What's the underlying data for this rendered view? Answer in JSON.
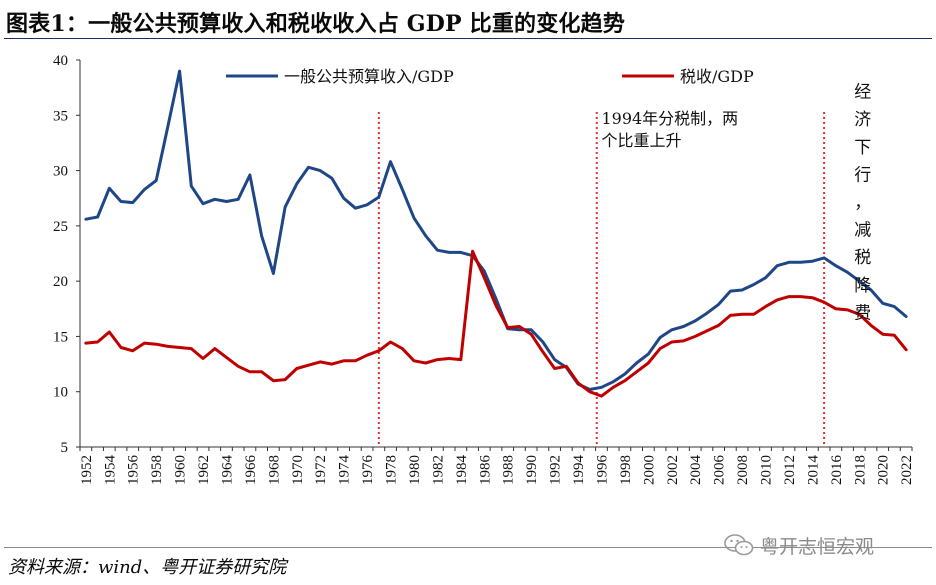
{
  "header": {
    "title": "图表1：一般公共预算收入和税收收入占 GDP 比重的变化趋势"
  },
  "footer": {
    "source": "资料来源：wind、粤开证券研究院",
    "watermark": "粤开志恒宏观"
  },
  "colors": {
    "series_revenue": "#1f4788",
    "series_tax": "#c00000",
    "marker_line": "#e03030",
    "axis": "#333333"
  },
  "chart_data": {
    "type": "line",
    "title": "一般公共预算收入和税收收入占 GDP 比重的变化趋势",
    "xlabel": "",
    "ylabel": "",
    "xlim": [
      1952,
      2023
    ],
    "ylim": [
      5,
      40
    ],
    "yticks": [
      5,
      10,
      15,
      20,
      25,
      30,
      35,
      40
    ],
    "xtick_labels": [
      "1952",
      "1954",
      "1956",
      "1958",
      "1960",
      "1962",
      "1964",
      "1966",
      "1968",
      "1970",
      "1972",
      "1974",
      "1976",
      "1978",
      "1980",
      "1982",
      "1984",
      "1986",
      "1988",
      "1990",
      "1992",
      "1994",
      "1996",
      "1998",
      "2000",
      "2002",
      "2004",
      "2006",
      "2008",
      "2010",
      "2012",
      "2014",
      "2016",
      "2018",
      "2020",
      "2022"
    ],
    "legend_position": "top",
    "series": [
      {
        "name": "一般公共预算收入/GDP",
        "color_key": "series_revenue",
        "points": [
          [
            1952,
            25.6
          ],
          [
            1953,
            25.8
          ],
          [
            1954,
            28.4
          ],
          [
            1955,
            27.2
          ],
          [
            1956,
            27.1
          ],
          [
            1957,
            28.3
          ],
          [
            1958,
            29.1
          ],
          [
            1959,
            34.0
          ],
          [
            1960,
            39.0
          ],
          [
            1961,
            28.6
          ],
          [
            1962,
            27.0
          ],
          [
            1963,
            27.4
          ],
          [
            1964,
            27.2
          ],
          [
            1965,
            27.4
          ],
          [
            1966,
            29.6
          ],
          [
            1967,
            24.1
          ],
          [
            1968,
            20.7
          ],
          [
            1969,
            26.7
          ],
          [
            1970,
            28.8
          ],
          [
            1971,
            30.3
          ],
          [
            1972,
            30.0
          ],
          [
            1973,
            29.3
          ],
          [
            1974,
            27.5
          ],
          [
            1975,
            26.6
          ],
          [
            1976,
            26.9
          ],
          [
            1977,
            27.6
          ],
          [
            1978,
            30.8
          ],
          [
            1979,
            28.3
          ],
          [
            1980,
            25.7
          ],
          [
            1981,
            24.1
          ],
          [
            1982,
            22.8
          ],
          [
            1983,
            22.6
          ],
          [
            1984,
            22.6
          ],
          [
            1985,
            22.3
          ],
          [
            1986,
            20.9
          ],
          [
            1987,
            18.4
          ],
          [
            1988,
            15.7
          ],
          [
            1989,
            15.6
          ],
          [
            1990,
            15.6
          ],
          [
            1991,
            14.5
          ],
          [
            1992,
            12.9
          ],
          [
            1993,
            12.2
          ],
          [
            1994,
            10.7
          ],
          [
            1995,
            10.2
          ],
          [
            1996,
            10.4
          ],
          [
            1997,
            10.9
          ],
          [
            1998,
            11.6
          ],
          [
            1999,
            12.6
          ],
          [
            2000,
            13.4
          ],
          [
            2001,
            14.9
          ],
          [
            2002,
            15.6
          ],
          [
            2003,
            15.9
          ],
          [
            2004,
            16.4
          ],
          [
            2005,
            17.1
          ],
          [
            2006,
            17.9
          ],
          [
            2007,
            19.1
          ],
          [
            2008,
            19.2
          ],
          [
            2009,
            19.7
          ],
          [
            2010,
            20.3
          ],
          [
            2011,
            21.4
          ],
          [
            2012,
            21.7
          ],
          [
            2013,
            21.7
          ],
          [
            2014,
            21.8
          ],
          [
            2015,
            22.1
          ],
          [
            2016,
            21.4
          ],
          [
            2017,
            20.8
          ],
          [
            2018,
            20.0
          ],
          [
            2019,
            19.2
          ],
          [
            2020,
            18.0
          ],
          [
            2021,
            17.7
          ],
          [
            2022,
            16.8
          ]
        ]
      },
      {
        "name": "税收/GDP",
        "color_key": "series_tax",
        "points": [
          [
            1952,
            14.4
          ],
          [
            1953,
            14.5
          ],
          [
            1954,
            15.4
          ],
          [
            1955,
            14.0
          ],
          [
            1956,
            13.7
          ],
          [
            1957,
            14.4
          ],
          [
            1958,
            14.3
          ],
          [
            1959,
            14.1
          ],
          [
            1960,
            14.0
          ],
          [
            1961,
            13.9
          ],
          [
            1962,
            13.0
          ],
          [
            1963,
            13.9
          ],
          [
            1964,
            13.1
          ],
          [
            1965,
            12.3
          ],
          [
            1966,
            11.8
          ],
          [
            1967,
            11.8
          ],
          [
            1968,
            11.0
          ],
          [
            1969,
            11.1
          ],
          [
            1970,
            12.1
          ],
          [
            1971,
            12.4
          ],
          [
            1972,
            12.7
          ],
          [
            1973,
            12.5
          ],
          [
            1974,
            12.8
          ],
          [
            1975,
            12.8
          ],
          [
            1976,
            13.3
          ],
          [
            1977,
            13.7
          ],
          [
            1978,
            14.5
          ],
          [
            1979,
            13.9
          ],
          [
            1980,
            12.8
          ],
          [
            1981,
            12.6
          ],
          [
            1982,
            12.9
          ],
          [
            1983,
            13.0
          ],
          [
            1984,
            12.9
          ],
          [
            1985,
            22.7
          ],
          [
            1986,
            20.3
          ],
          [
            1987,
            17.8
          ],
          [
            1988,
            15.8
          ],
          [
            1989,
            15.9
          ],
          [
            1990,
            15.2
          ],
          [
            1991,
            13.6
          ],
          [
            1992,
            12.1
          ],
          [
            1993,
            12.3
          ],
          [
            1994,
            10.8
          ],
          [
            1995,
            10.0
          ],
          [
            1996,
            9.6
          ],
          [
            1997,
            10.4
          ],
          [
            1998,
            11.0
          ],
          [
            1999,
            11.8
          ],
          [
            2000,
            12.6
          ],
          [
            2001,
            13.9
          ],
          [
            2002,
            14.5
          ],
          [
            2003,
            14.6
          ],
          [
            2004,
            15.0
          ],
          [
            2005,
            15.5
          ],
          [
            2006,
            16.0
          ],
          [
            2007,
            16.9
          ],
          [
            2008,
            17.0
          ],
          [
            2009,
            17.0
          ],
          [
            2010,
            17.7
          ],
          [
            2011,
            18.3
          ],
          [
            2012,
            18.6
          ],
          [
            2013,
            18.6
          ],
          [
            2014,
            18.5
          ],
          [
            2015,
            18.1
          ],
          [
            2016,
            17.5
          ],
          [
            2017,
            17.4
          ],
          [
            2018,
            17.0
          ],
          [
            2019,
            16.0
          ],
          [
            2020,
            15.2
          ],
          [
            2021,
            15.1
          ],
          [
            2022,
            13.8
          ]
        ]
      }
    ],
    "reference_lines": [
      {
        "x": 1977.5,
        "style": "dotted"
      },
      {
        "x": 1996.1,
        "style": "dotted"
      },
      {
        "x": 2015.5,
        "style": "dotted"
      }
    ],
    "annotations": [
      {
        "lines": [
          "1994年分税制，两",
          "个比重上升"
        ],
        "x": 1996.5,
        "y": 34.2
      },
      {
        "vertical_chars": [
          "经",
          "济",
          "下",
          "行",
          "，",
          "减",
          "税",
          "降",
          "费"
        ],
        "x": 2018.8,
        "y": 36.6
      }
    ]
  }
}
